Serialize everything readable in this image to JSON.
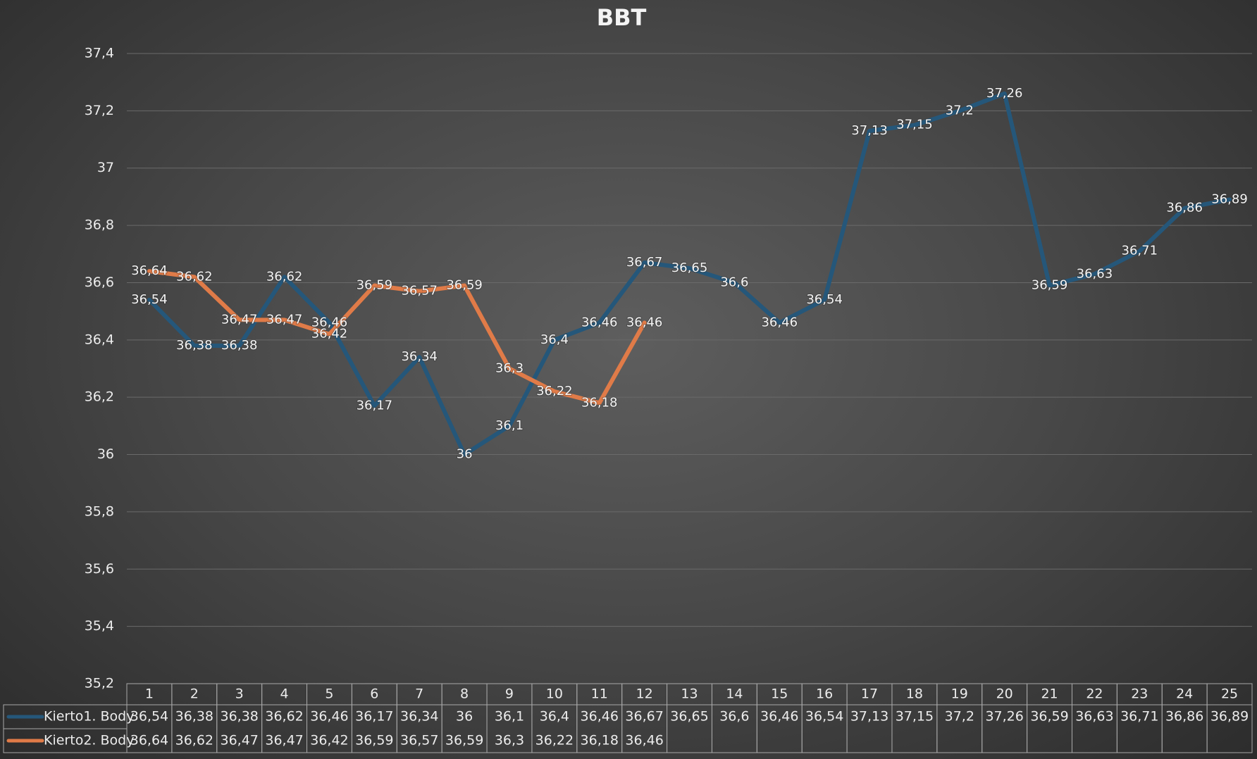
{
  "chart_data": {
    "type": "line",
    "title": "BBT",
    "categories": [
      "1",
      "2",
      "3",
      "4",
      "5",
      "6",
      "7",
      "8",
      "9",
      "10",
      "11",
      "12",
      "13",
      "14",
      "15",
      "16",
      "17",
      "18",
      "19",
      "20",
      "21",
      "22",
      "23",
      "24",
      "25"
    ],
    "series": [
      {
        "name": "Kierto1. Body",
        "color": "#25577a",
        "values": [
          36.54,
          36.38,
          36.38,
          36.62,
          36.46,
          36.17,
          36.34,
          36,
          36.1,
          36.4,
          36.46,
          36.67,
          36.65,
          36.6,
          36.46,
          36.54,
          37.13,
          37.15,
          37.2,
          37.26,
          36.59,
          36.63,
          36.71,
          36.86,
          36.89
        ],
        "value_labels": [
          "36,54",
          "36,38",
          "36,38",
          "36,62",
          "36,46",
          "36,17",
          "36,34",
          "36",
          "36,1",
          "36,4",
          "36,46",
          "36,67",
          "36,65",
          "36,6",
          "36,46",
          "36,54",
          "37,13",
          "37,15",
          "37,2",
          "37,26",
          "36,59",
          "36,63",
          "36,71",
          "36,86",
          "36,89"
        ]
      },
      {
        "name": "Kierto2. Body",
        "color": "#e07b48",
        "values": [
          36.64,
          36.62,
          36.47,
          36.47,
          36.42,
          36.59,
          36.57,
          36.59,
          36.3,
          36.22,
          36.18,
          36.46,
          null,
          null,
          null,
          null,
          null,
          null,
          null,
          null,
          null,
          null,
          null,
          null,
          null
        ],
        "value_labels": [
          "36,64",
          "36,62",
          "36,47",
          "36,47",
          "36,42",
          "36,59",
          "36,57",
          "36,59",
          "36,3",
          "36,22",
          "36,18",
          "36,46",
          null,
          null,
          null,
          null,
          null,
          null,
          null,
          null,
          null,
          null,
          null,
          null,
          null
        ]
      }
    ],
    "ylim": [
      35.2,
      37.4
    ],
    "yticks": [
      {
        "value": 35.2,
        "label": "35,2"
      },
      {
        "value": 35.4,
        "label": "35,4"
      },
      {
        "value": 35.6,
        "label": "35,6"
      },
      {
        "value": 35.8,
        "label": "35,8"
      },
      36,
      {
        "value": 36.2,
        "label": "36,2"
      },
      {
        "value": 36.4,
        "label": "36,4"
      },
      {
        "value": 36.6,
        "label": "36,6"
      },
      {
        "value": 36.8,
        "label": "36,8"
      },
      37,
      {
        "value": 37.2,
        "label": "37,2"
      },
      {
        "value": 37.4,
        "label": "37,4"
      }
    ],
    "grid": true
  }
}
